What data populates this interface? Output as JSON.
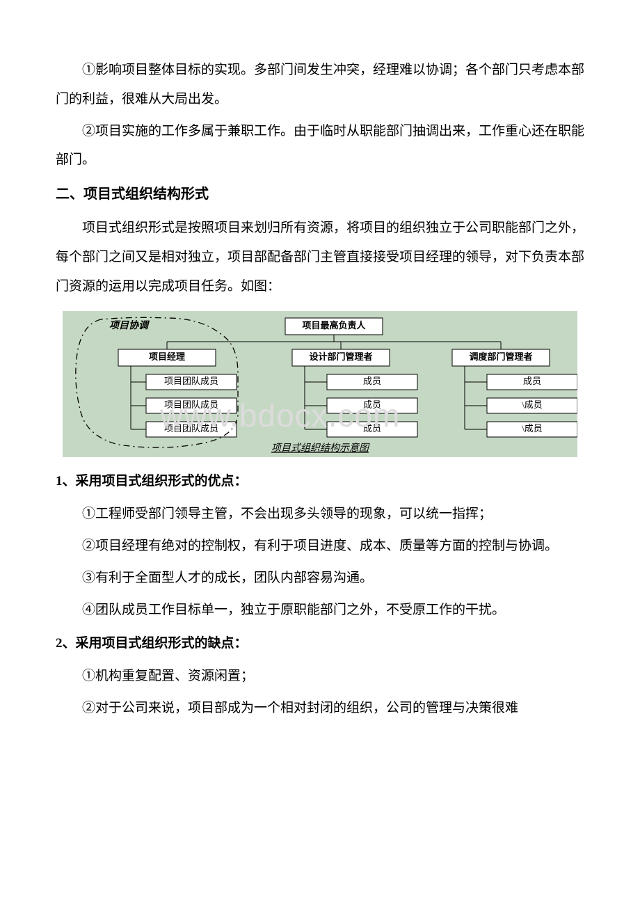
{
  "paragraphs": {
    "p1": "①影响项目整体目标的实现。多部门间发生冲突，经理难以协调；各个部门只考虑本部门的利益，很难从大局出发。",
    "p2": "②项目实施的工作多属于兼职工作。由于临时从职能部门抽调出来，工作重心还在职能部门。",
    "h2": "二、项目式组织结构形式",
    "p3": "项目式组织形式是按照项目来划归所有资源，将项目的组织独立于公司职能部门之外，每个部门之间又是相对独立，项目部配备部门主管直接接受项目经理的领导，对下负责本部门资源的运用以完成项目任务。如图：",
    "h3a_num": "1",
    "h3a": "、采用项目式组织形式的优点：",
    "adv1": "①工程师受部门领导主管，不会出现多头领导的现象，可以统一指挥；",
    "adv2": "②项目经理有绝对的控制权，有利于项目进度、成本、质量等方面的控制与协调。",
    "adv3": "③有利于全面型人才的成长，团队内部容易沟通。",
    "adv4": "④团队成员工作目标单一，独立于原职能部门之外，不受原工作的干扰。",
    "h3b_num": "2",
    "h3b": "、采用项目式组织形式的缺点：",
    "dis1": "①机构重复配置、资源闲置；",
    "dis2": "②对于公司来说，项目部成为一个相对封闭的组织，公司的管理与决策很难"
  },
  "diagram": {
    "bg_color": "#c5d8c3",
    "box_stroke": "#000000",
    "box_fill": "#ffffff",
    "font_size_box": 13,
    "font_size_title": 13,
    "coord_label": "项目协调",
    "top_box": "项目最高负责人",
    "col1_header": "项目经理",
    "col1_items": [
      "项目团队成员",
      "项目团队成员",
      "项目团队成员"
    ],
    "col2_header": "设计部门管理者",
    "col2_items": [
      "成员",
      "成员",
      "成员"
    ],
    "col3_header": "调度部门管理者",
    "col3_items": [
      "成员",
      "\\成员",
      "\\成员"
    ],
    "caption": "项目式组织结构示意图",
    "watermark": "www.bdocx.com"
  },
  "colors": {
    "text": "#000000",
    "background": "#ffffff",
    "watermark": "#dcdcdc"
  }
}
